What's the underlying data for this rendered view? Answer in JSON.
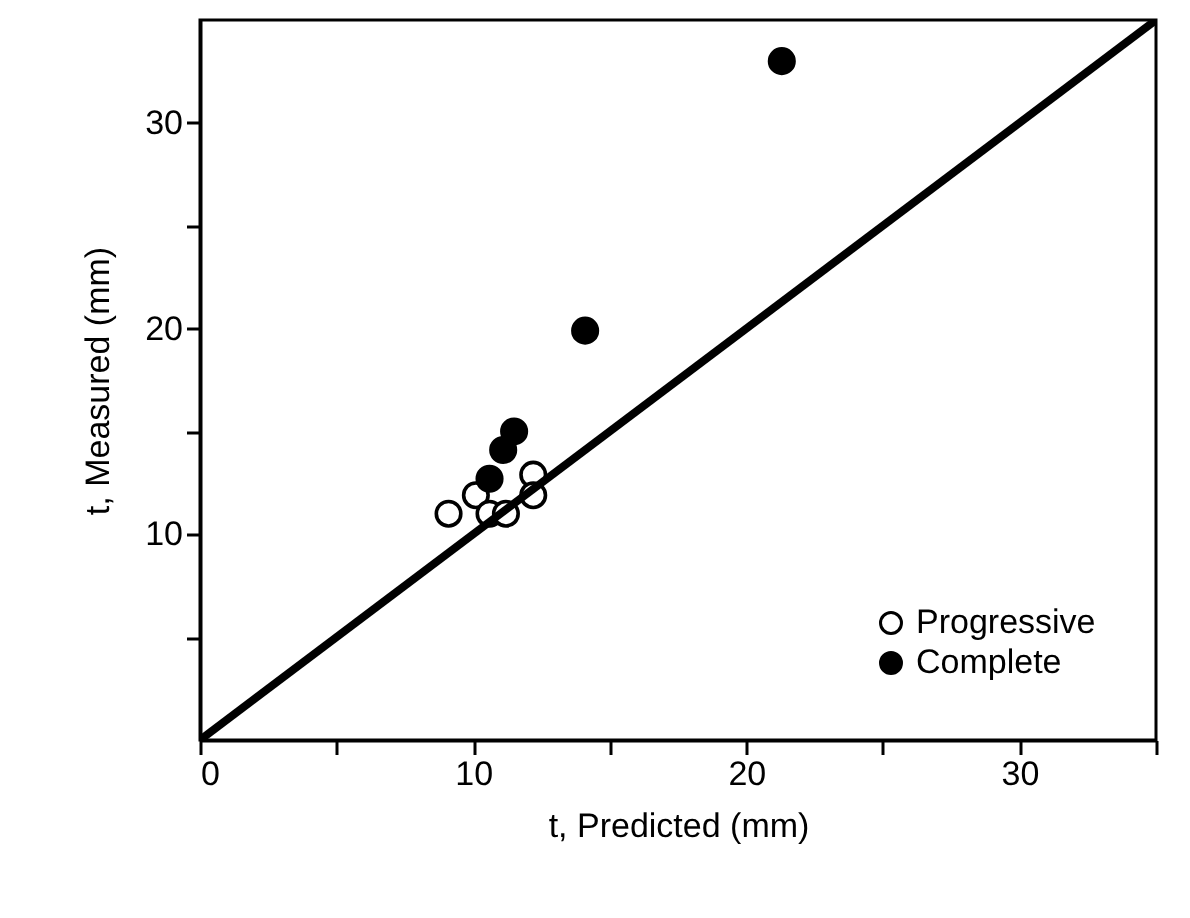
{
  "chart_data": {
    "type": "scatter",
    "xlabel": "t, Predicted (mm)",
    "ylabel": "t, Measured (mm)",
    "xlim": [
      0,
      35
    ],
    "ylim": [
      0,
      35
    ],
    "xticks": [
      0,
      {
        "value": 5,
        "label": null
      },
      10,
      {
        "value": 15,
        "label": null
      },
      20,
      {
        "value": 25,
        "label": null
      },
      30,
      {
        "value": 35,
        "label": null
      }
    ],
    "yticks": [
      {
        "value": 5,
        "label": null
      },
      10,
      {
        "value": 15,
        "label": null
      },
      20,
      {
        "value": 25,
        "label": null
      },
      30
    ],
    "marker": "circle",
    "grid": false,
    "legend": "bottom right",
    "series": [
      {
        "name": "Progressive",
        "color": "#ffffff",
        "x": [
          9.1,
          10.1,
          10.6,
          11.2,
          12.2,
          12.2
        ],
        "values": [
          11.0,
          11.9,
          11.0,
          11.0,
          12.9,
          11.9
        ]
      },
      {
        "name": "Complete",
        "color": "#000000",
        "x": [
          10.6,
          11.1,
          11.5,
          14.1,
          21.3
        ],
        "values": [
          12.7,
          14.1,
          15.0,
          19.9,
          33.0
        ]
      },
      {
        "type": "line",
        "color": "#000000",
        "marker": "none",
        "x": [
          0,
          35
        ],
        "values": [
          0,
          35
        ]
      }
    ]
  }
}
